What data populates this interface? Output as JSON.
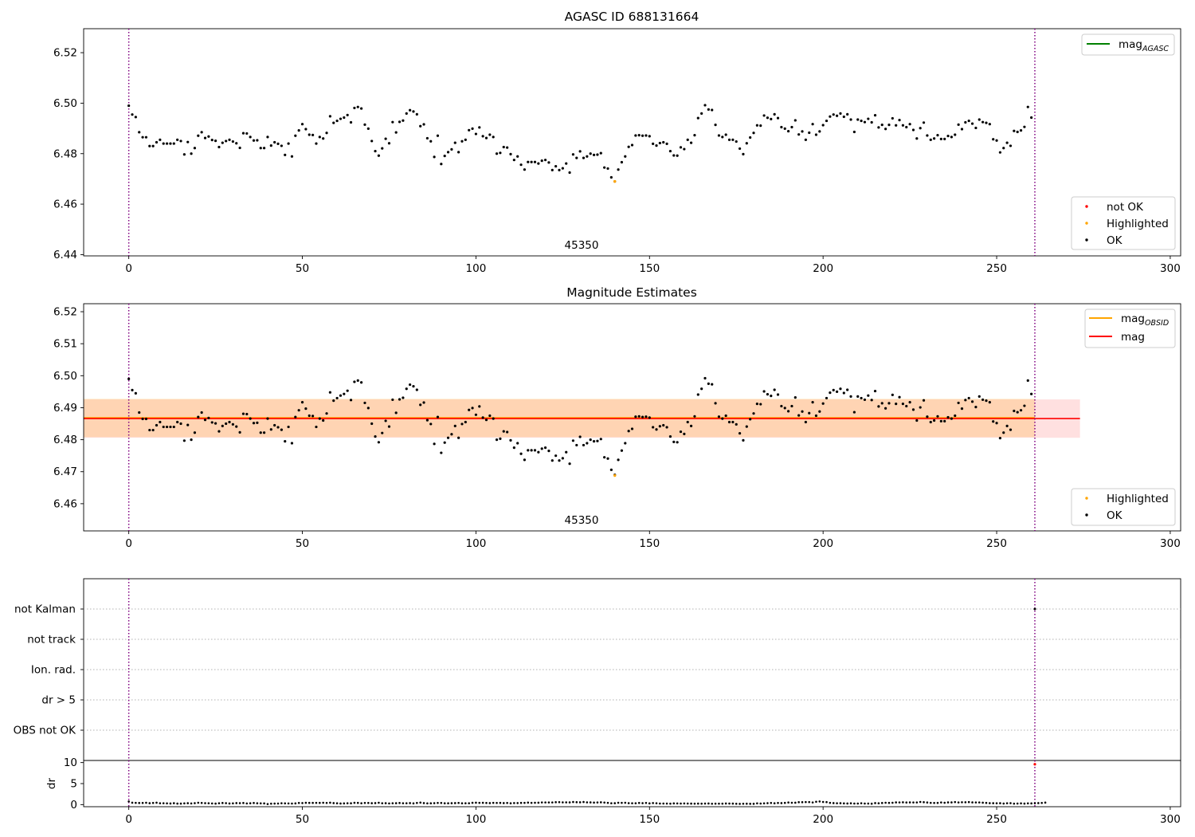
{
  "chart_data": [
    {
      "type": "scatter",
      "title": "AGASC ID 688131664",
      "xlim": [
        -13,
        303
      ],
      "ylim": [
        6.4395,
        6.5295
      ],
      "xticks": [
        0,
        50,
        100,
        150,
        200,
        250,
        300
      ],
      "yticks": [
        6.44,
        6.46,
        6.48,
        6.5,
        6.52
      ],
      "ytick_labels": [
        "6.44",
        "6.46",
        "6.48",
        "6.50",
        "6.52"
      ],
      "grid": false,
      "vlines": [
        0,
        261
      ],
      "annotation": "45350",
      "line_legend": {
        "position": "top-right",
        "entries": [
          {
            "label": "mag",
            "sub": "AGASC",
            "color": "#008000"
          }
        ]
      },
      "marker_legend": {
        "position": "bottom-right",
        "entries": [
          {
            "label": "not OK",
            "color": "#ff0000"
          },
          {
            "label": "Highlighted",
            "color": "#ffa500"
          },
          {
            "label": "OK",
            "color": "#000000"
          }
        ]
      },
      "highlighted": {
        "x": 140,
        "y": 6.469
      }
    },
    {
      "type": "scatter",
      "title": "Magnitude Estimates",
      "xlim": [
        -13,
        303
      ],
      "ylim": [
        6.4515,
        6.5225
      ],
      "xticks": [
        0,
        50,
        100,
        150,
        200,
        250,
        300
      ],
      "yticks": [
        6.46,
        6.47,
        6.48,
        6.49,
        6.5,
        6.51,
        6.52
      ],
      "ytick_labels": [
        "6.46",
        "6.47",
        "6.48",
        "6.49",
        "6.50",
        "6.51",
        "6.52"
      ],
      "grid": false,
      "vlines": [
        0,
        261
      ],
      "annotation": "45350",
      "mag_obsid": {
        "value": 6.4868,
        "band": [
          6.4808,
          6.4928
        ],
        "x": [
          -13,
          261
        ]
      },
      "mag": {
        "value": 6.4866,
        "band": [
          6.4806,
          6.4926
        ],
        "x": [
          -13,
          274
        ]
      },
      "line_legend": {
        "position": "top-right",
        "entries": [
          {
            "label": "mag",
            "sub": "OBSID",
            "color": "#ffa500"
          },
          {
            "label": "mag",
            "sub": "",
            "color": "#ff0000"
          }
        ]
      },
      "marker_legend": {
        "position": "bottom-right",
        "entries": [
          {
            "label": "Highlighted",
            "color": "#ffa500"
          },
          {
            "label": "OK",
            "color": "#000000"
          }
        ]
      },
      "highlighted": {
        "x": 140,
        "y": 6.4688
      }
    },
    {
      "type": "scatter",
      "title": "",
      "xlim": [
        -13,
        303
      ],
      "categories": [
        "OBS not OK",
        "dr > 5",
        "Ion. rad.",
        "not track",
        "not Kalman"
      ],
      "grid": true,
      "vlines": [
        0,
        261
      ],
      "flags": [
        {
          "x": 261,
          "category": "not Kalman"
        }
      ]
    },
    {
      "type": "scatter",
      "title": "",
      "ylabel": "dr",
      "xlim": [
        -13,
        303
      ],
      "ylim": [
        -0.5,
        10.5
      ],
      "xticks": [
        0,
        50,
        100,
        150,
        200,
        250,
        300
      ],
      "yticks": [
        0,
        5,
        10
      ],
      "ytick_labels": [
        "0",
        "5",
        "10"
      ],
      "grid": false,
      "vlines": [
        0,
        261
      ],
      "outlier": {
        "x": 261,
        "y": 9.6
      },
      "values_level": 0.3
    }
  ],
  "series": {
    "x_start": 0,
    "mag_values": [
      6.499,
      6.4955,
      6.4945,
      6.4885,
      6.4865,
      6.4865,
      6.483,
      6.483,
      6.4845,
      6.4855,
      6.484,
      6.484,
      6.484,
      6.484,
      6.4855,
      6.485,
      6.4797,
      6.4846,
      6.48,
      6.4822,
      6.4871,
      6.4885,
      6.4862,
      6.4868,
      6.4854,
      6.4851,
      6.4826,
      6.4843,
      6.485,
      6.4855,
      6.4848,
      6.4841,
      6.4823,
      6.4881,
      6.488,
      6.4866,
      6.4852,
      6.4853,
      6.4822,
      6.4822,
      6.4866,
      6.4832,
      6.4845,
      6.4839,
      6.4831,
      6.4795,
      6.484,
      6.4789,
      6.4871,
      6.4892,
      6.4917,
      6.4897,
      6.4875,
      6.4874,
      6.484,
      6.4866,
      6.486,
      6.4882,
      6.4948,
      6.4922,
      6.493,
      6.4938,
      6.4943,
      6.4953,
      6.4924,
      6.4981,
      6.4985,
      6.4979,
      6.4915,
      6.4899,
      6.485,
      6.481,
      6.4792,
      6.4821,
      6.4859,
      6.4841,
      6.4925,
      6.4884,
      6.4926,
      6.4931,
      6.4959,
      6.4972,
      6.4967,
      6.4956,
      6.4909,
      6.4916,
      6.4861,
      6.4849,
      6.4787,
      6.4871,
      6.4759,
      6.4791,
      6.4806,
      6.4817,
      6.4843,
      6.4806,
      6.4849,
      6.4855,
      6.4893,
      6.4899,
      6.4878,
      6.4904,
      6.4869,
      6.4862,
      6.4875,
      6.4866,
      6.48,
      6.4803,
      6.4826,
      6.4824,
      6.4798,
      6.4775,
      6.4789,
      6.4756,
      6.4737,
      6.4767,
      6.4767,
      6.4767,
      6.4761,
      6.4772,
      6.4775,
      6.4765,
      6.4735,
      6.475,
      6.4735,
      6.4742,
      6.4761,
      6.4725,
      6.4797,
      6.4783,
      6.4809,
      6.4783,
      6.4789,
      6.48,
      6.4795,
      6.4796,
      6.4802,
      6.4745,
      6.4741,
      6.4706,
      6.469,
      6.4737,
      6.4766,
      6.4789,
      6.4827,
      6.4834,
      6.4872,
      6.4873,
      6.4871,
      6.4872,
      6.4869,
      6.4839,
      6.4832,
      6.4842,
      6.4845,
      6.4839,
      6.481,
      6.4793,
      6.4792,
      6.4825,
      6.4818,
      6.4855,
      6.4843,
      6.4873,
      6.4941,
      6.4959,
      6.4992,
      6.4975,
      6.4973,
      6.4914,
      6.4872,
      6.4866,
      6.4875,
      6.4855,
      6.4855,
      6.4848,
      6.482,
      6.4798,
      6.4841,
      6.4864,
      6.4882,
      6.4912,
      6.4911,
      6.4951,
      6.4942,
      6.4937,
      6.4956,
      6.4941,
      6.4905,
      6.4899,
      6.4889,
      6.4905,
      6.4932,
      6.4876,
      6.4888,
      6.4855,
      6.4883,
      6.4917,
      6.4875,
      6.4888,
      6.4913,
      6.493,
      6.4947,
      6.4955,
      6.495,
      6.4959,
      6.4946,
      6.4956,
      6.4935,
      6.4886,
      6.4935,
      6.493,
      6.4925,
      6.4938,
      6.4924,
      6.4952,
      6.4904,
      6.4914,
      6.4898,
      6.4914,
      6.494,
      6.4912,
      6.4933,
      6.4912,
      6.4905,
      6.4917,
      6.4894,
      6.486,
      6.4901,
      6.4923,
      6.4872,
      6.4855,
      6.486,
      6.4873,
      6.4858,
      6.4858,
      6.487,
      6.4866,
      6.4875,
      6.4915,
      6.4897,
      6.4924,
      6.493,
      6.4919,
      6.4902,
      6.4935,
      6.4925,
      6.4922,
      6.4917,
      6.4857,
      6.4852,
      6.4805,
      6.4822,
      6.4843,
      6.4831,
      6.489,
      6.4886,
      6.4892,
      6.4906,
      6.4985,
      6.4943
    ],
    "dr_values": [
      0.75,
      0.46,
      0.42,
      0.38,
      0.39,
      0.44,
      0.34,
      0.39,
      0.46,
      0.33,
      0.33,
      0.3,
      0.27,
      0.34,
      0.24,
      0.24,
      0.3,
      0.34,
      0.28,
      0.35,
      0.45,
      0.39,
      0.35,
      0.32,
      0.28,
      0.24,
      0.32,
      0.38,
      0.35,
      0.27,
      0.3,
      0.36,
      0.35,
      0.38,
      0.28,
      0.32,
      0.38,
      0.31,
      0.3,
      0.29,
      0.14,
      0.23,
      0.25,
      0.26,
      0.33,
      0.3,
      0.28,
      0.26,
      0.29,
      0.39,
      0.37,
      0.43,
      0.41,
      0.41,
      0.42,
      0.41,
      0.44,
      0.4,
      0.46,
      0.36,
      0.31,
      0.27,
      0.29,
      0.32,
      0.31,
      0.43,
      0.41,
      0.32,
      0.4,
      0.39,
      0.34,
      0.36,
      0.44,
      0.33,
      0.34,
      0.28,
      0.32,
      0.34,
      0.38,
      0.33,
      0.33,
      0.36,
      0.29,
      0.39,
      0.48,
      0.36,
      0.3,
      0.31,
      0.35,
      0.4,
      0.39,
      0.31,
      0.31,
      0.34,
      0.36,
      0.4,
      0.31,
      0.32,
      0.32,
      0.43,
      0.46,
      0.42,
      0.43,
      0.39,
      0.36,
      0.42,
      0.4,
      0.41,
      0.36,
      0.39,
      0.31,
      0.37,
      0.37,
      0.41,
      0.42,
      0.48,
      0.42,
      0.44,
      0.46,
      0.52,
      0.52,
      0.51,
      0.52,
      0.57,
      0.58,
      0.54,
      0.54,
      0.53,
      0.62,
      0.57,
      0.55,
      0.62,
      0.54,
      0.53,
      0.48,
      0.51,
      0.55,
      0.49,
      0.42,
      0.33,
      0.34,
      0.44,
      0.42,
      0.44,
      0.35,
      0.32,
      0.32,
      0.39,
      0.35,
      0.4,
      0.29,
      0.37,
      0.33,
      0.26,
      0.26,
      0.25,
      0.23,
      0.29,
      0.28,
      0.26,
      0.28,
      0.26,
      0.24,
      0.23,
      0.24,
      0.23,
      0.25,
      0.27,
      0.21,
      0.23,
      0.23,
      0.23,
      0.27,
      0.25,
      0.24,
      0.2,
      0.18,
      0.21,
      0.22,
      0.19,
      0.19,
      0.3,
      0.26,
      0.3,
      0.35,
      0.39,
      0.31,
      0.39,
      0.36,
      0.41,
      0.5,
      0.44,
      0.46,
      0.57,
      0.57,
      0.61,
      0.6,
      0.52,
      0.68,
      0.75,
      0.63,
      0.6,
      0.42,
      0.36,
      0.32,
      0.34,
      0.29,
      0.27,
      0.31,
      0.26,
      0.26,
      0.33,
      0.26,
      0.25,
      0.22,
      0.36,
      0.31,
      0.38,
      0.45,
      0.41,
      0.44,
      0.53,
      0.52,
      0.55,
      0.5,
      0.53,
      0.51,
      0.52,
      0.64,
      0.57,
      0.5,
      0.42,
      0.39,
      0.41,
      0.51,
      0.44,
      0.53,
      0.53,
      0.61,
      0.52,
      0.56,
      0.56,
      0.6,
      0.53,
      0.52,
      0.52,
      0.46,
      0.41,
      0.35,
      0.34,
      0.32,
      0.34,
      0.25,
      0.33,
      0.35,
      0.23,
      0.26,
      0.3,
      0.24,
      0.3,
      0.29,
      0.33,
      0.36,
      0.4,
      0.48
    ]
  }
}
